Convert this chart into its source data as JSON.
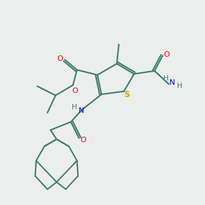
{
  "background_color": "#eceeed",
  "bond_color": "#3a7a6a",
  "atom_colors": {
    "O": "#ff0000",
    "N": "#0000cc",
    "S": "#ccaa00",
    "H": "#3a7a6a",
    "C": "#3a7a6a"
  },
  "figsize": [
    3.0,
    3.0
  ],
  "dpi": 100,
  "xlim": [
    0,
    10
  ],
  "ylim": [
    0,
    10
  ]
}
